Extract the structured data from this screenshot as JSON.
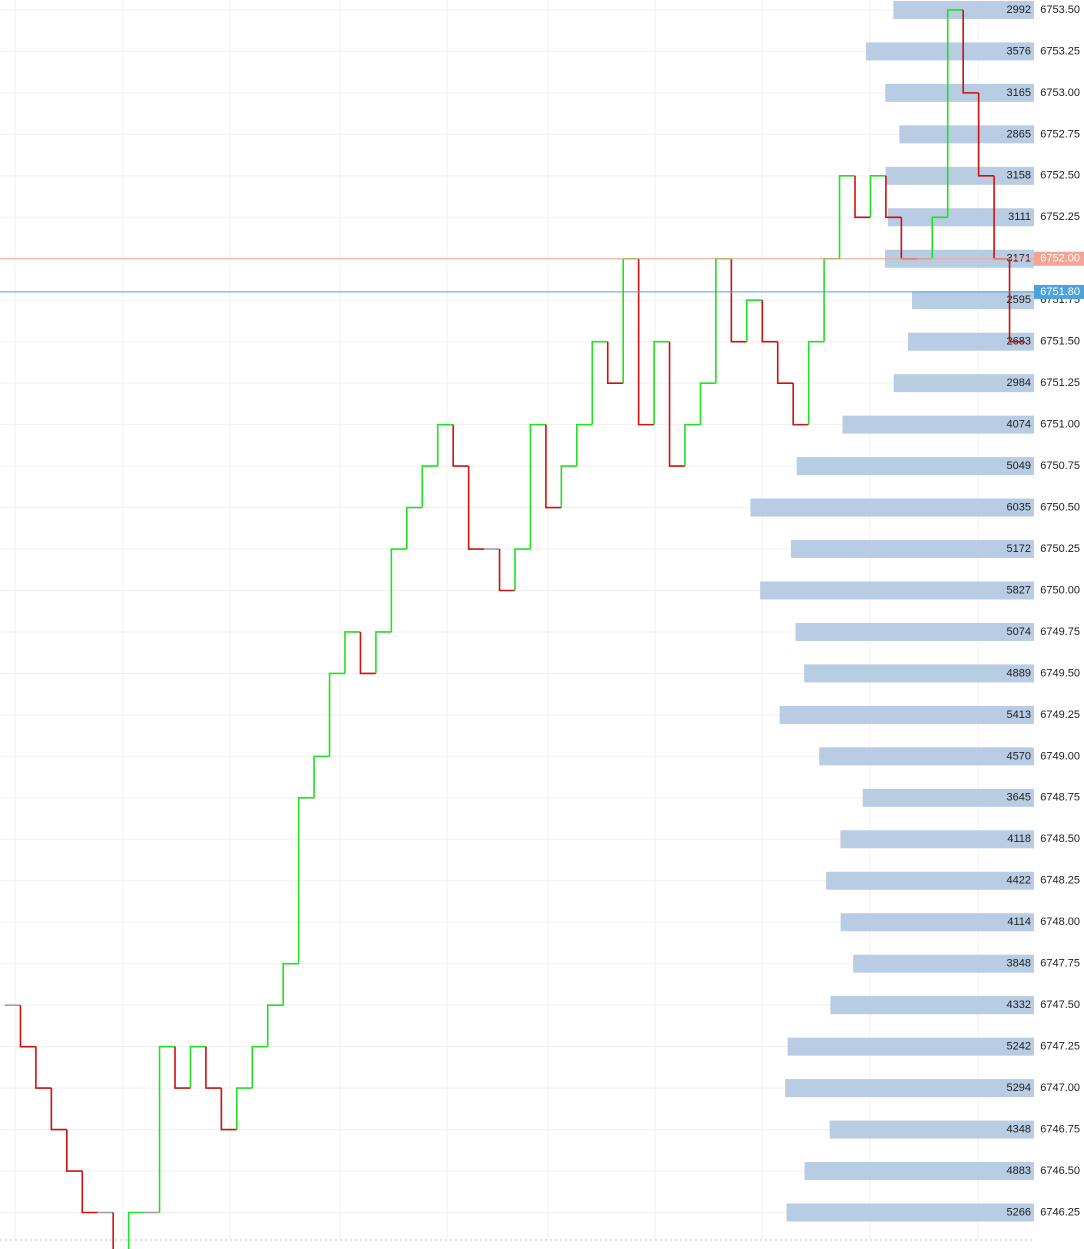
{
  "chart_data": {
    "type": "volume_profile",
    "ylim": [
      6746.03,
      6753.56
    ],
    "yticks": [
      {
        "value": 6753.5,
        "label": "6753.50"
      },
      {
        "value": 6753.25,
        "label": "6753.25"
      },
      {
        "value": 6753,
        "label": "6753.00"
      },
      {
        "value": 6752.75,
        "label": "6752.75"
      },
      {
        "value": 6752.5,
        "label": "6752.50"
      },
      {
        "value": 6752.25,
        "label": "6752.25"
      },
      {
        "value": 6752,
        "label": "6752.00"
      },
      {
        "value": 6751.75,
        "label": "6751.75"
      },
      {
        "value": 6751.5,
        "label": "6751.50"
      },
      {
        "value": 6751.25,
        "label": "6751.25"
      },
      {
        "value": 6751,
        "label": "6751.00"
      },
      {
        "value": 6750.75,
        "label": "6750.75"
      },
      {
        "value": 6750.5,
        "label": "6750.50"
      },
      {
        "value": 6750.25,
        "label": "6750.25"
      },
      {
        "value": 6750,
        "label": "6750.00"
      },
      {
        "value": 6749.75,
        "label": "6749.75"
      },
      {
        "value": 6749.5,
        "label": "6749.50"
      },
      {
        "value": 6749.25,
        "label": "6749.25"
      },
      {
        "value": 6749,
        "label": "6749.00"
      },
      {
        "value": 6748.75,
        "label": "6748.75"
      },
      {
        "value": 6748.5,
        "label": "6748.50"
      },
      {
        "value": 6748.25,
        "label": "6748.25"
      },
      {
        "value": 6748,
        "label": "6748.00"
      },
      {
        "value": 6747.75,
        "label": "6747.75"
      },
      {
        "value": 6747.5,
        "label": "6747.50"
      },
      {
        "value": 6747.25,
        "label": "6747.25"
      },
      {
        "value": 6747,
        "label": "6747.00"
      },
      {
        "value": 6746.75,
        "label": "6746.75"
      },
      {
        "value": 6746.5,
        "label": "6746.50"
      },
      {
        "value": 6746.25,
        "label": "6746.25"
      }
    ],
    "grid": true,
    "profile": {
      "color": "#b8cce4",
      "xlim": [
        0,
        22000
      ],
      "values": [
        2992,
        3576,
        3165,
        2865,
        3158,
        3111,
        3171,
        2595,
        2683,
        2984,
        4074,
        5049,
        6035,
        5172,
        5827,
        5074,
        4889,
        5413,
        4570,
        3645,
        4118,
        4422,
        4114,
        3848,
        4332,
        5242,
        5294,
        4348,
        4883,
        5266
      ]
    },
    "price": {
      "up_color": "#22e022",
      "down_color": "#cc1111",
      "flat_color": "#a0a0a0",
      "values": [
        6747.5,
        6747.25,
        6747.0,
        6746.75,
        6746.5,
        6746.25,
        6746.25,
        6746.0,
        6746.25,
        6746.25,
        6747.25,
        6747.0,
        6747.25,
        6747.0,
        6746.75,
        6747.0,
        6747.25,
        6747.5,
        6747.75,
        6748.75,
        6749.0,
        6749.5,
        6749.75,
        6749.5,
        6749.75,
        6750.25,
        6750.5,
        6750.75,
        6751.0,
        6750.75,
        6750.25,
        6750.25,
        6750.0,
        6750.25,
        6751.0,
        6750.5,
        6750.75,
        6751.0,
        6751.5,
        6751.25,
        6752.0,
        6751.0,
        6751.5,
        6750.75,
        6751.0,
        6751.25,
        6752.0,
        6751.5,
        6751.75,
        6751.5,
        6751.25,
        6751.0,
        6751.5,
        6752.0,
        6752.5,
        6752.25,
        6752.5,
        6752.25,
        6752.0,
        6752.0,
        6752.25,
        6753.5,
        6753.0,
        6752.5,
        6752.0,
        6751.5
      ]
    },
    "markers": [
      {
        "value": 6752,
        "label": "6752.00",
        "color": "#f4a493"
      },
      {
        "value": 6751.8,
        "label": "6751.80",
        "color": "#4aa3df"
      }
    ]
  }
}
